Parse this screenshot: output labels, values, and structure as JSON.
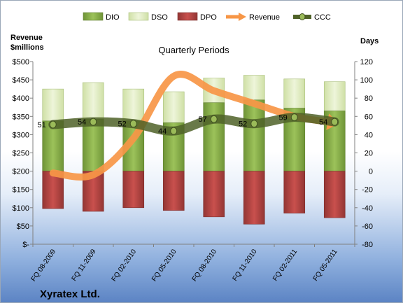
{
  "chart_data": {
    "type": "bar",
    "title": "Quarterly Periods",
    "company": "Xyratex Ltd.",
    "left_axis_label_line1": "Revenue",
    "left_axis_label_line2": "$millions",
    "right_axis_label": "Days",
    "categories": [
      "FQ 08-2009",
      "FQ 11-2009",
      "FQ 02-2010",
      "FQ 05-2010",
      "FQ 08-2010",
      "FQ 11-2010",
      "FQ 02-2011",
      "FQ 05-2011"
    ],
    "left_ticks": [
      "$-",
      "$50",
      "$100",
      "$150",
      "$200",
      "$250",
      "$300",
      "$350",
      "$400",
      "$450",
      "$500"
    ],
    "right_ticks": [
      "-80",
      "-60",
      "-40",
      "-20",
      "0",
      "20",
      "40",
      "60",
      "80",
      "100",
      "120"
    ],
    "left_ylim": [
      0,
      500
    ],
    "right_ylim": [
      -80,
      120
    ],
    "series": [
      {
        "name": "DIO",
        "axis": "right",
        "values": [
          55,
          57,
          55,
          53,
          75,
          78,
          69,
          66
        ],
        "color": "#8db14a"
      },
      {
        "name": "DSO",
        "axis": "right",
        "values": [
          90,
          97,
          90,
          87,
          102,
          105,
          101,
          98
        ],
        "color": "#dbe8b8"
      },
      {
        "name": "DPO",
        "axis": "right",
        "values": [
          -41,
          -44,
          -40,
          -43,
          -50,
          -58,
          -46,
          -51
        ],
        "color": "#c0504d"
      },
      {
        "name": "Revenue",
        "axis": "left",
        "values": [
          195,
          190,
          290,
          460,
          420,
          385,
          350,
          335
        ],
        "color": "#f79646"
      },
      {
        "name": "CCC",
        "axis": "right",
        "values": [
          51,
          54,
          52,
          44,
          57,
          52,
          59,
          54
        ],
        "color": "#4f6228"
      }
    ],
    "ccc_labels": [
      "51",
      "54",
      "52",
      "44",
      "57",
      "52",
      "59",
      "54"
    ],
    "legend_position": "top"
  }
}
